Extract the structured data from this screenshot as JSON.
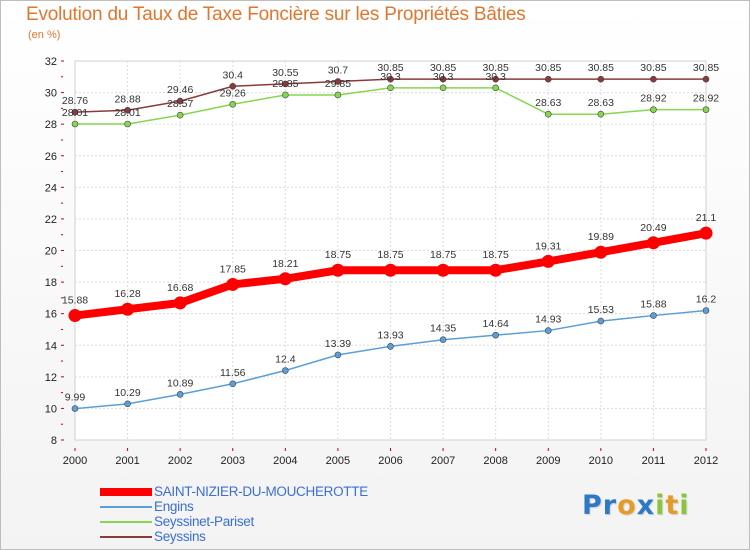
{
  "title": "Evolution du Taux de Taxe Foncière sur les Propriétés Bâties",
  "subtitle": "(en %)",
  "logo": {
    "text": "Proxiti",
    "letters": [
      {
        "ch": "P",
        "color": "#2e78c8"
      },
      {
        "ch": "r",
        "color": "#2e78c8"
      },
      {
        "ch": "o",
        "color": "#e69a2a"
      },
      {
        "ch": "x",
        "color": "#2e78c8"
      },
      {
        "ch": "i",
        "color": "#8cc43c"
      },
      {
        "ch": "t",
        "color": "#e69a2a"
      },
      {
        "ch": "i",
        "color": "#8cc43c"
      }
    ]
  },
  "chart_data": {
    "type": "line",
    "title": "Evolution du Taux de Taxe Foncière sur les Propriétés Bâties",
    "ylabel": "(en %)",
    "xlabel": "",
    "x": [
      "2000",
      "2001",
      "2002",
      "2003",
      "2004",
      "2005",
      "2006",
      "2007",
      "2008",
      "2009",
      "2010",
      "2011",
      "2012"
    ],
    "ylim": [
      8,
      32
    ],
    "yticks": [
      8,
      10,
      12,
      14,
      16,
      18,
      20,
      22,
      24,
      26,
      28,
      30,
      32
    ],
    "grid": true,
    "legend_position": "bottom-left",
    "series": [
      {
        "name": "SAINT-NIZIER-DU-MOUCHEROTTE",
        "color": "#ff0000",
        "values": [
          15.88,
          16.28,
          16.68,
          17.85,
          18.21,
          18.75,
          18.75,
          18.75,
          18.75,
          19.31,
          19.89,
          20.49,
          21.1
        ],
        "labels": [
          "15.88",
          "16.28",
          "16.68",
          "17.85",
          "18.21",
          "18.75",
          "18.75",
          "18.75",
          "18.75",
          "19.31",
          "19.89",
          "20.49",
          "21.1"
        ]
      },
      {
        "name": "Engins",
        "color": "#5a9fd8",
        "values": [
          9.99,
          10.29,
          10.89,
          11.56,
          12.4,
          13.39,
          13.93,
          14.35,
          14.64,
          14.93,
          15.53,
          15.88,
          16.2
        ],
        "labels": [
          "9.99",
          "10.29",
          "10.89",
          "11.56",
          "12.4",
          "13.39",
          "13.93",
          "14.35",
          "14.64",
          "14.93",
          "15.53",
          "15.88",
          "16.2"
        ]
      },
      {
        "name": "Seyssinet-Pariset",
        "color": "#86d650",
        "values": [
          28.01,
          28.01,
          28.57,
          29.26,
          29.85,
          29.85,
          30.3,
          30.3,
          30.3,
          28.63,
          28.63,
          28.92,
          28.92
        ],
        "labels": [
          "28.01",
          "28.01",
          "28.57",
          "29.26",
          "29.85",
          "29.85",
          "30.3",
          "30.3",
          "30.3",
          "28.63",
          "28.63",
          "28.92",
          "28.92"
        ]
      },
      {
        "name": "Seyssins",
        "color": "#8b3a3a",
        "values": [
          28.76,
          28.88,
          29.46,
          30.4,
          30.55,
          30.7,
          30.85,
          30.85,
          30.85,
          30.85,
          30.85,
          30.85,
          30.85
        ],
        "labels": [
          "28.76",
          "28.88",
          "29.46",
          "30.4",
          "30.55",
          "30.7",
          "30.85",
          "30.85",
          "30.85",
          "30.85",
          "30.85",
          "30.85",
          "30.85"
        ]
      }
    ]
  }
}
